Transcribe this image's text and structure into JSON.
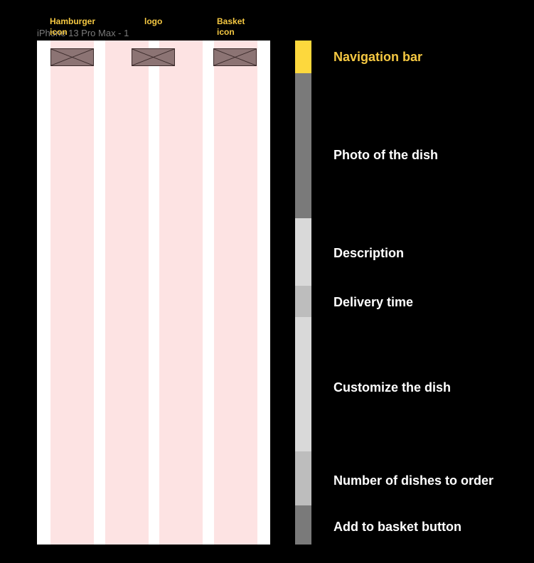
{
  "frame_name": "iPhone 13 Pro Max - 1",
  "annotations": {
    "hamburger": {
      "line1": "Hamburger",
      "line2": "icon"
    },
    "logo": {
      "line1": "logo"
    },
    "basket": {
      "line1": "Basket",
      "line2": "icon"
    }
  },
  "colors": {
    "highlight": "#f5c842",
    "nav_segment": "#fdd83d",
    "photo_segment": "#7a7a7a",
    "description_segment": "#d9d9d9",
    "delivery_segment": "#bdbdbd",
    "customize_segment": "#d9d9d9",
    "number_segment": "#bdbdbd",
    "add_segment": "#7a7a7a",
    "column_fill": "#fde3e3"
  },
  "sections": [
    {
      "label": "Navigation bar",
      "highlighted": true
    },
    {
      "label": "Photo of the dish"
    },
    {
      "label": "Description"
    },
    {
      "label": "Delivery time"
    },
    {
      "label": "Customize the dish"
    },
    {
      "label": "Number of dishes to order"
    },
    {
      "label": "Add to basket button"
    }
  ]
}
